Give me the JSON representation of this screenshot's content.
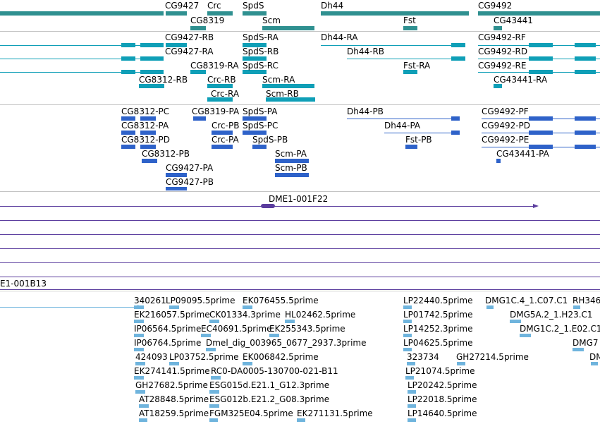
{
  "colors": {
    "gene_track": "#2f9090",
    "transcript_track": "#0f9fb7",
    "predicted_track": "#2e62c9",
    "cdna_track": "#5b3d9e",
    "est_track": "#6fb4dd",
    "separator": "#c4c4c4"
  },
  "gene_track": {
    "labels": [
      "CG9427",
      "Crc",
      "SpdS",
      "Dh44",
      "CG9492",
      "CG8319",
      "Scm",
      "Fst",
      "CG43441"
    ]
  },
  "transcript_track": {
    "labels": [
      "CG9427-RB",
      "SpdS-RA",
      "Dh44-RA",
      "CG9492-RF",
      "CG9427-RA",
      "SpdS-RB",
      "Dh44-RB",
      "CG9492-RD",
      "CG8319-RA",
      "SpdS-RC",
      "Fst-RA",
      "CG9492-RE",
      "CG8312-RB",
      "Crc-RB",
      "Scm-RA",
      "CG43441-RA",
      "Crc-RA",
      "Scm-RB"
    ]
  },
  "predicted_track": {
    "labels": [
      "CG8312-PC",
      "CG8319-PA",
      "SpdS-PA",
      "Dh44-PB",
      "CG9492-PF",
      "CG8312-PA",
      "Crc-PB",
      "SpdS-PC",
      "Dh44-PA",
      "CG9492-PD",
      "CG8312-PD",
      "Crc-PA",
      "SpdS-PB",
      "Fst-PB",
      "CG9492-PE",
      "CG8312-PB",
      "Scm-PA",
      "CG43441-PA",
      "CG9427-PA",
      "Scm-PB",
      "CG9427-PB"
    ]
  },
  "cdna_track": {
    "labels": [
      "DME1-001F22",
      "E1-001B13"
    ]
  },
  "est_track": {
    "labels": [
      "340261",
      "LP09095.5prime",
      "EK076455.5prime",
      "LP22440.5prime",
      "DMG1C.4_1.C07.C1",
      "RH346",
      "EK216057.5prime",
      "CK01334.3prime",
      "HL02462.5prime",
      "LP01742.5prime",
      "DMG5A.2_1.H23.C1",
      "IP06564.5prime",
      "EC40691.5prime",
      "EK255343.5prime",
      "LP14252.3prime",
      "DMG1C.2_1.E02.C1",
      "IP06764.5prime",
      "Dmel_dig_003965_0677_2937.3prime",
      "LP04625.5prime",
      "DMG7",
      "424093",
      "LP03752.5prime",
      "EK006842.5prime",
      "323734",
      "GH27214.5prime",
      "DM",
      "EK274141.5prime",
      "RC0-DA0005-130700-021-B11",
      "LP21074.5prime",
      "GH27682.5prime",
      "ESG015d.E21.1_G12.3prime",
      "LP20242.5prime",
      "AT28848.5prime",
      "ESG012b.E21.2_G08.3prime",
      "LP22018.5prime",
      "AT18259.5prime",
      "FGM325E04.5prime",
      "EK271131.5prime",
      "LP14640.5prime"
    ]
  }
}
